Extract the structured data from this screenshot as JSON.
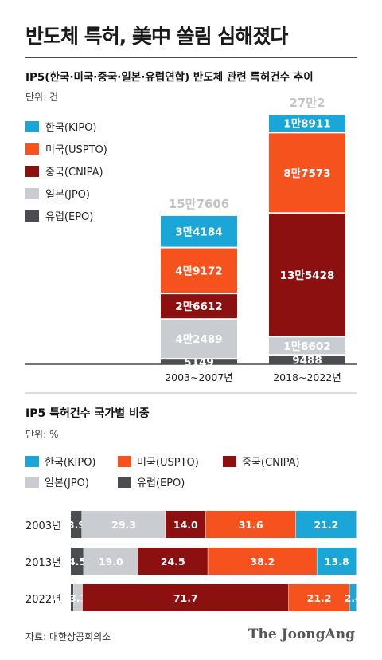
{
  "title": "반도체 특허, 美中 쏠림 심해졌다",
  "source": "자료: 대한상공회의소",
  "brand": "The JoongAng",
  "colors": {
    "한국(KIPO)": "#1aa6d6",
    "미국(USPTO)": "#f6521e",
    "중국(CNIPA)": "#8d1010",
    "일본(JPO)": "#c9ccd0",
    "유럽(EPO)": "#4b4d50",
    "total": "#c4c4c4"
  },
  "chart_data": [
    {
      "type": "bar",
      "stacked": true,
      "title": "IP5(한국·미국·중국·일본·유럽연합) 반도체 관련 특허건수 추이",
      "unit": "단위: 건",
      "categories": [
        "2003~2007년",
        "2018~2022년"
      ],
      "totals_labels": [
        "15만7606",
        "27만2"
      ],
      "totals": [
        157606,
        270002
      ],
      "legend": [
        "한국(KIPO)",
        "미국(USPTO)",
        "중국(CNIPA)",
        "일본(JPO)",
        "유럽(EPO)"
      ],
      "series": [
        {
          "name": "유럽(EPO)",
          "values": [
            5149,
            9488
          ],
          "labels": [
            "5149",
            "9488"
          ]
        },
        {
          "name": "일본(JPO)",
          "values": [
            42489,
            18602
          ],
          "labels": [
            "4만2489",
            "1만8602"
          ]
        },
        {
          "name": "중국(CNIPA)",
          "values": [
            26612,
            135428
          ],
          "labels": [
            "2만6612",
            "13만5428"
          ]
        },
        {
          "name": "미국(USPTO)",
          "values": [
            49172,
            87573
          ],
          "labels": [
            "4만9172",
            "8만7573"
          ]
        },
        {
          "name": "한국(KIPO)",
          "values": [
            34184,
            18911
          ],
          "labels": [
            "3만4184",
            "1만8911"
          ]
        }
      ]
    },
    {
      "type": "bar",
      "orientation": "horizontal",
      "stacked": true,
      "title": "IP5 특허건수 국가별 비중",
      "unit": "단위: %",
      "legend": [
        "한국(KIPO)",
        "미국(USPTO)",
        "중국(CNIPA)",
        "일본(JPO)",
        "유럽(EPO)"
      ],
      "categories": [
        "2003년",
        "2013년",
        "2022년"
      ],
      "series": [
        {
          "name": "유럽(EPO)",
          "values": [
            3.9,
            4.5,
            1.0
          ]
        },
        {
          "name": "일본(JPO)",
          "values": [
            29.3,
            19.0,
            3.1
          ]
        },
        {
          "name": "중국(CNIPA)",
          "values": [
            14.0,
            24.5,
            71.7
          ]
        },
        {
          "name": "미국(USPTO)",
          "values": [
            31.6,
            38.2,
            21.2
          ]
        },
        {
          "name": "한국(KIPO)",
          "values": [
            21.2,
            13.8,
            2.4
          ]
        }
      ],
      "shown_labels": [
        [
          "3.9",
          "29.3",
          "14.0",
          "31.6",
          "21.2"
        ],
        [
          "4.5",
          "19.0",
          "24.5",
          "38.2",
          "13.8"
        ],
        [
          "",
          "3.1",
          "71.7",
          "21.2",
          "2.4"
        ]
      ]
    }
  ]
}
